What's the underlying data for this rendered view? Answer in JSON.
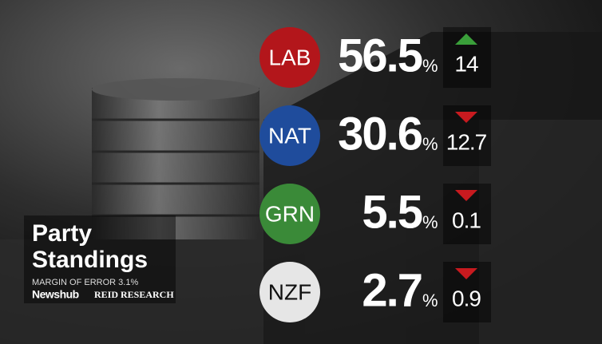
{
  "panel": {
    "title_line1": "Party",
    "title_line2": "Standings",
    "subtitle": "MARGIN OF ERROR 3.1%",
    "brand": "Newshub",
    "partner": "REID RESEARCH"
  },
  "unit": "%",
  "arrow_colors": {
    "up": "#3a9f3a",
    "down": "#c81a1f"
  },
  "rows": [
    {
      "party": "LAB",
      "color": "#b3161b",
      "text_color": "#ffffff",
      "value": 56.5,
      "change": 14,
      "direction": "up"
    },
    {
      "party": "NAT",
      "color": "#1f4c9c",
      "text_color": "#ffffff",
      "value": 30.6,
      "change": 12.7,
      "direction": "down"
    },
    {
      "party": "GRN",
      "color": "#3a8a38",
      "text_color": "#ffffff",
      "value": 5.5,
      "change": 0.1,
      "direction": "down"
    },
    {
      "party": "NZF",
      "color": "#e6e6e6",
      "text_color": "#111111",
      "value": 2.7,
      "change": 0.9,
      "direction": "down"
    }
  ]
}
